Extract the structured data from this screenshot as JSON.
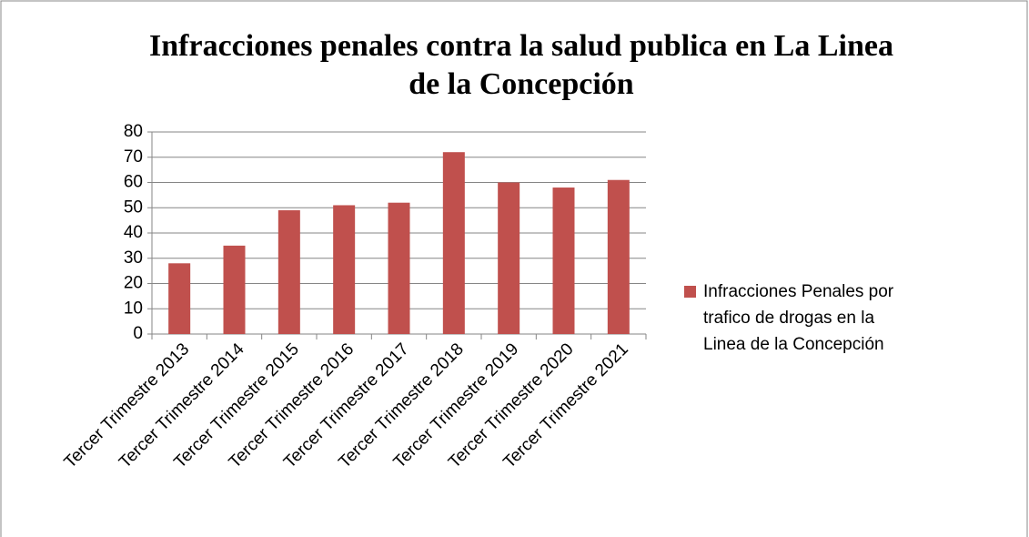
{
  "chart_data": {
    "type": "bar",
    "title": "Infracciones penales contra la salud publica en La Linea de la Concepción",
    "categories": [
      "Tercer Trimestre 2013",
      "Tercer Trimestre 2014",
      "Tercer Trimestre 2015",
      "Tercer Trimestre 2016",
      "Tercer Trimestre 2017",
      "Tercer Trimestre 2018",
      "Tercer Trimestre 2019",
      "Tercer Trimestre 2020",
      "Tercer Trimestre 2021"
    ],
    "series": [
      {
        "name": "Infracciones Penales por trafico de drogas en la Linea de la Concepción",
        "color": "#c0504d",
        "values": [
          28,
          35,
          49,
          51,
          52,
          72,
          60,
          58,
          61
        ]
      }
    ],
    "ylim": [
      0,
      80
    ],
    "yticks": [
      0,
      10,
      20,
      30,
      40,
      50,
      60,
      70,
      80
    ],
    "grid": true,
    "legend": "right"
  }
}
